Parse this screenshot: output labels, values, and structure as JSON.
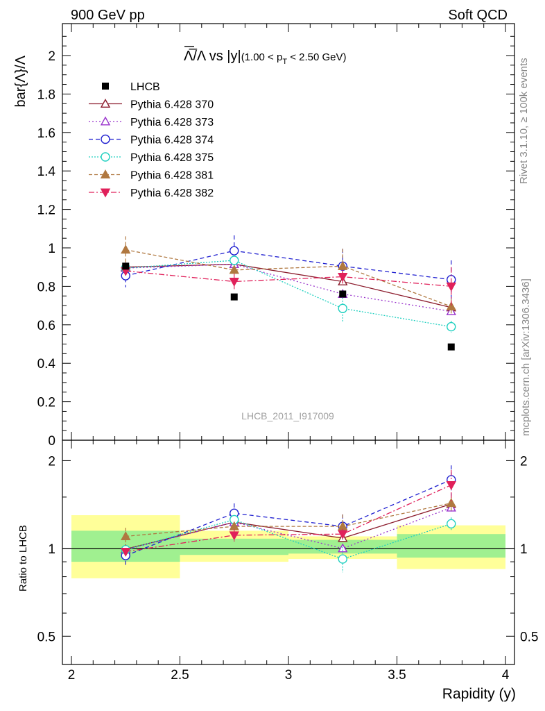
{
  "header": {
    "left": "900 GeV pp",
    "right": "Soft QCD"
  },
  "side_labels": {
    "rivet": "Rivet 3.1.10, ≥ 100k events",
    "mcplots": "mcplots.cern.ch [arXiv:1306.3436]"
  },
  "watermark": "LHCB_2011_I917009",
  "chart_data": {
    "type": "scatter",
    "title": "Λ̅/Λ vs |y|(1.00 < p_T < 2.50 GeV)",
    "title_parts": {
      "main": "Λ̅/Λ vs |y|",
      "cut_prefix": "(1.00 < p",
      "cut_sub": "T",
      "cut_suffix": " < 2.50 GeV)"
    },
    "xlabel": "Rapidity (y)",
    "ylabel": "bar{Λ}/Λ",
    "ratio_ylabel": "Ratio to LHCB",
    "xlim": [
      2,
      4
    ],
    "ylim": [
      0,
      2.15
    ],
    "ratio_ylim": [
      0.4,
      2.35
    ],
    "ratio_log_scale": true,
    "x_ticks": [
      "2",
      "2.5",
      "3",
      "3.5",
      "4"
    ],
    "y_ticks": [
      "0",
      "0.2",
      "0.4",
      "0.6",
      "0.8",
      "1",
      "1.2",
      "1.4",
      "1.6",
      "1.8",
      "2"
    ],
    "ratio_ticks": [
      "0.5",
      "1",
      "2"
    ],
    "legend_position": "top-left",
    "x": [
      2.25,
      2.75,
      3.25,
      3.75
    ],
    "bins": [
      [
        2.0,
        2.5
      ],
      [
        2.5,
        3.0
      ],
      [
        3.0,
        3.5
      ],
      [
        3.5,
        4.0
      ]
    ],
    "data": {
      "name": "LHCB",
      "values": [
        0.905,
        0.745,
        0.76,
        0.485
      ],
      "band_inner": [
        [
          0.9,
          1.15
        ],
        [
          0.95,
          1.08
        ],
        [
          0.96,
          1.07
        ],
        [
          0.93,
          1.12
        ]
      ],
      "band_outer": [
        [
          0.79,
          1.3
        ],
        [
          0.9,
          1.15
        ],
        [
          0.92,
          1.1
        ],
        [
          0.85,
          1.2
        ]
      ]
    },
    "series": [
      {
        "name": "Pythia 6.428 370",
        "color": "#8b1a2b",
        "dash": "",
        "marker": "triangle-up-open",
        "values": [
          0.9,
          0.915,
          0.825,
          0.69
        ],
        "errors": [
          0.01,
          0.01,
          0.015,
          0.02
        ],
        "ratio": [
          0.995,
          1.23,
          1.085,
          1.42
        ]
      },
      {
        "name": "Pythia 6.428 373",
        "color": "#9932cc",
        "dash": "2,3",
        "marker": "triangle-up-open",
        "values": [
          0.895,
          0.915,
          0.76,
          0.67
        ],
        "errors": [
          0.02,
          0.02,
          0.02,
          0.02
        ],
        "ratio": [
          0.99,
          1.23,
          1.0,
          1.38
        ]
      },
      {
        "name": "Pythia 6.428 374",
        "color": "#2020d0",
        "dash": "6,4",
        "marker": "circle-open",
        "values": [
          0.855,
          0.985,
          0.905,
          0.835
        ],
        "errors": [
          0.06,
          0.08,
          0.09,
          0.1
        ],
        "ratio": [
          0.945,
          1.32,
          1.19,
          1.72
        ]
      },
      {
        "name": "Pythia 6.428 375",
        "color": "#20d0c0",
        "dash": "2,2",
        "marker": "circle-open",
        "values": [
          0.895,
          0.935,
          0.685,
          0.59
        ],
        "errors": [
          0.015,
          0.02,
          0.07,
          0.03
        ],
        "ratio": [
          0.99,
          1.255,
          0.92,
          1.215
        ]
      },
      {
        "name": "Pythia 6.428 381",
        "color": "#b07840",
        "dash": "5,3",
        "marker": "triangle-up-filled",
        "values": [
          0.99,
          0.885,
          0.905,
          0.695
        ],
        "errors": [
          0.07,
          0.02,
          0.09,
          0.04
        ],
        "ratio": [
          1.1,
          1.19,
          1.19,
          1.43
        ]
      },
      {
        "name": "Pythia 6.428 382",
        "color": "#e0205a",
        "dash": "8,3,2,3",
        "marker": "triangle-down-filled",
        "values": [
          0.88,
          0.825,
          0.85,
          0.8
        ],
        "errors": [
          0.015,
          0.04,
          0.035,
          0.1
        ],
        "ratio": [
          0.975,
          1.11,
          1.12,
          1.65
        ]
      }
    ],
    "colors": {
      "band_inner": "#a0f090",
      "band_outer": "#ffff99",
      "data_marker": "#000000"
    }
  }
}
